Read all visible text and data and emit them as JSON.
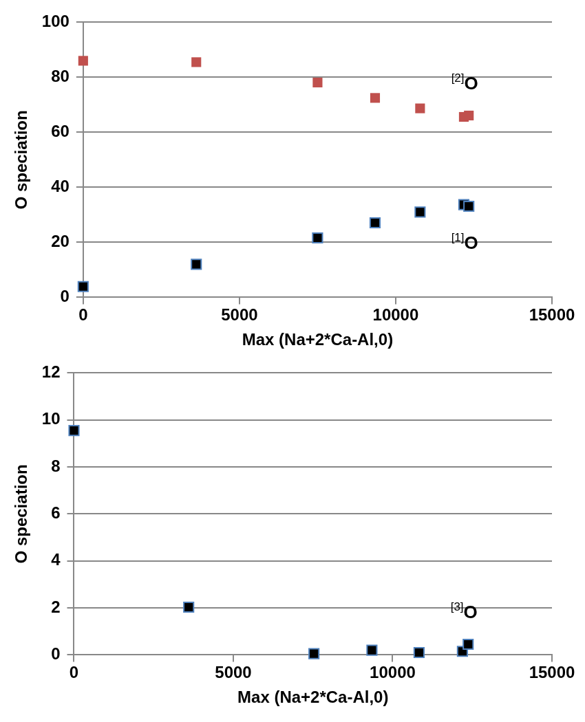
{
  "chart_data": [
    {
      "type": "scatter",
      "xlabel": "Max (Na+2*Ca-Al,0)",
      "ylabel": "O speciation",
      "xlim": [
        0,
        15000
      ],
      "xticks": [
        0,
        5000,
        10000,
        15000
      ],
      "ylim": [
        0,
        100
      ],
      "yticks": [
        0,
        20,
        40,
        60,
        80,
        100
      ],
      "grid": "y",
      "marker": "square",
      "x": [
        0,
        3620,
        7500,
        9340,
        10780,
        12180,
        12340
      ],
      "series": [
        {
          "name": "$^{[2]}$O",
          "color": "#c0504d",
          "values": [
            86.0,
            85.5,
            78.1,
            72.5,
            68.7,
            65.6,
            66.1
          ]
        },
        {
          "name": "$^{[1]}$O",
          "color": "#000000",
          "values": [
            3.9,
            12.0,
            21.6,
            27.1,
            31.0,
            33.7,
            33.1
          ]
        }
      ]
    },
    {
      "type": "scatter",
      "xlabel": "Max (Na+2*Ca-Al,0)",
      "ylabel": "O speciation",
      "xlim": [
        0,
        15000
      ],
      "xticks": [
        0,
        5000,
        10000,
        15000
      ],
      "ylim": [
        0,
        12
      ],
      "yticks": [
        0,
        2,
        4,
        6,
        8,
        10,
        12
      ],
      "grid": "y",
      "marker": "square",
      "x": [
        0,
        3600,
        7530,
        9350,
        10830,
        12190,
        12370
      ],
      "series": [
        {
          "name": "$^{[3]}$O",
          "color": "#000000",
          "values": [
            9.55,
            2.03,
            0.05,
            0.2,
            0.1,
            0.15,
            0.45
          ]
        }
      ]
    }
  ]
}
